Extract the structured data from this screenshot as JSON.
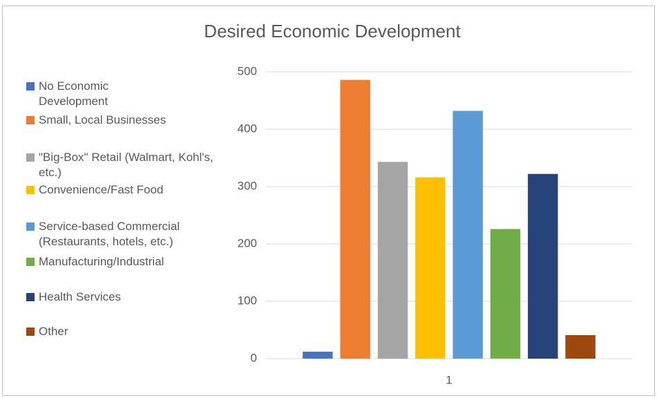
{
  "chart_data": {
    "type": "bar",
    "title": "Desired Economic Development",
    "categories": [
      "1"
    ],
    "series": [
      {
        "name": "No Economic Development",
        "color": "#4472c4",
        "values": [
          12
        ]
      },
      {
        "name": "Small, Local Businesses",
        "color": "#ed7d31",
        "values": [
          486
        ]
      },
      {
        "name": "\"Big-Box\" Retail (Walmart, Kohl's, etc.)",
        "color": "#a5a5a5",
        "values": [
          343
        ]
      },
      {
        "name": "Convenience/Fast Food",
        "color": "#ffc000",
        "values": [
          316
        ]
      },
      {
        "name": "Service-based Commercial (Restaurants, hotels, etc.)",
        "color": "#5b9bd5",
        "values": [
          432
        ]
      },
      {
        "name": "Manufacturing/Industrial",
        "color": "#70ad47",
        "values": [
          226
        ]
      },
      {
        "name": "Health Services",
        "color": "#264478",
        "values": [
          322
        ]
      },
      {
        "name": "Other",
        "color": "#9e480e",
        "values": [
          41
        ]
      }
    ],
    "ylim": [
      0,
      500
    ],
    "yticks": [
      0,
      100,
      200,
      300,
      400,
      500
    ],
    "grid": true,
    "legend": "left"
  }
}
